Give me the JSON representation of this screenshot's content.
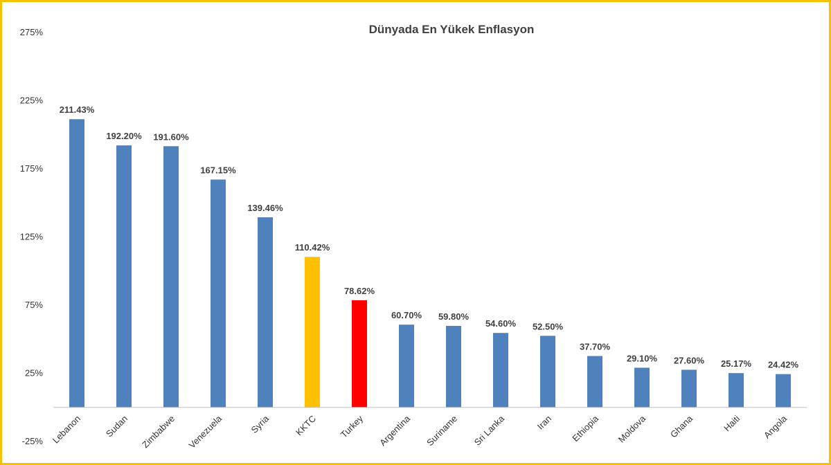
{
  "chart_data": {
    "type": "bar",
    "title": "Dünyada En Yükek Enflasyon",
    "xlabel": "",
    "ylabel": "",
    "ylim": [
      -25,
      275
    ],
    "yticks": [
      -25,
      25,
      75,
      125,
      175,
      225,
      275
    ],
    "ytick_labels": [
      "-25%",
      "25%",
      "75%",
      "125%",
      "175%",
      "225%",
      "275%"
    ],
    "grid": false,
    "legend": "none",
    "categories": [
      "Lebanon",
      "Sudan",
      "Zimbabwe",
      "Venezuela",
      "Syria",
      "KKTC",
      "Turkey",
      "Argentina",
      "Suriname",
      "Sri Lanka",
      "Iran",
      "Ethiopia",
      "Moldova",
      "Ghana",
      "Haiti",
      "Angola"
    ],
    "values": [
      211.43,
      192.2,
      191.6,
      167.15,
      139.46,
      110.42,
      78.62,
      60.7,
      59.8,
      54.6,
      52.5,
      37.7,
      29.1,
      27.6,
      25.17,
      24.42
    ],
    "data_labels": [
      "211.43%",
      "192.20%",
      "191.60%",
      "167.15%",
      "139.46%",
      "110.42%",
      "78.62%",
      "60.70%",
      "59.80%",
      "54.60%",
      "52.50%",
      "37.70%",
      "29.10%",
      "27.60%",
      "25.17%",
      "24.42%"
    ],
    "colors": {
      "default": "#4f81bd",
      "KKTC": "#ffc000",
      "Turkey": "#ff0000"
    }
  }
}
